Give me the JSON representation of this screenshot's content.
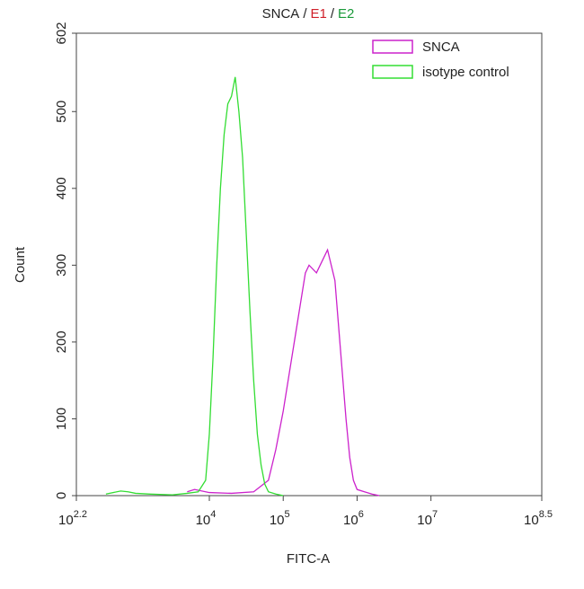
{
  "chart_data": {
    "type": "line",
    "title": [
      {
        "text": "SNCA",
        "color": "#222222"
      },
      {
        "text": "/",
        "color": "#222222"
      },
      {
        "text": "E1",
        "color": "#d0202a"
      },
      {
        "text": "/",
        "color": "#222222"
      },
      {
        "text": "E2",
        "color": "#1a9a3a"
      }
    ],
    "x_label": "FITC-A",
    "y_label": "Count",
    "x_scale": "log",
    "xlim": [
      158.489,
      316227766
    ],
    "xticks": [
      {
        "value": 158.489,
        "label": "10",
        "exponent": "2.2"
      },
      {
        "value": 10000,
        "label": "10",
        "exponent": "4"
      },
      {
        "value": 100000,
        "label": "10",
        "exponent": "5"
      },
      {
        "value": 1000000,
        "label": "10",
        "exponent": "6"
      },
      {
        "value": 10000000,
        "label": "10",
        "exponent": "7"
      },
      {
        "value": 316227766,
        "label": "10",
        "exponent": "8.5"
      }
    ],
    "ylim": [
      0,
      602
    ],
    "yticks": [
      0,
      100,
      200,
      300,
      400,
      500,
      602
    ],
    "legend": "top-right",
    "series": [
      {
        "name": "SNCA",
        "color": "#cc22cc",
        "x": [
          5012,
          6310,
          10000,
          19953,
          39811,
          63096,
          79433,
          100000,
          125893,
          158489,
          199526,
          223872,
          281838,
          354813,
          398107,
          501187,
          562341,
          630957,
          707946,
          794328,
          891251,
          1000000,
          1258925,
          1584893,
          1995262
        ],
        "values": [
          5,
          8,
          4,
          3,
          5,
          20,
          60,
          110,
          170,
          230,
          290,
          300,
          290,
          310,
          320,
          280,
          220,
          160,
          100,
          50,
          20,
          8,
          5,
          2,
          0
        ]
      },
      {
        "name": "isotype control",
        "color": "#33dd33",
        "x": [
          398,
          631,
          794,
          1000,
          1585,
          3162,
          5012,
          7079,
          8913,
          10000,
          11220,
          12589,
          14125,
          15849,
          17783,
          19953,
          22387,
          25119,
          28184,
          31623,
          35481,
          39811,
          44668,
          50119,
          56234,
          63096,
          79433,
          100000
        ],
        "values": [
          2,
          6,
          5,
          3,
          2,
          1,
          3,
          5,
          20,
          80,
          180,
          300,
          400,
          470,
          510,
          520,
          545,
          500,
          440,
          340,
          240,
          150,
          80,
          40,
          15,
          5,
          2,
          0
        ]
      }
    ]
  }
}
